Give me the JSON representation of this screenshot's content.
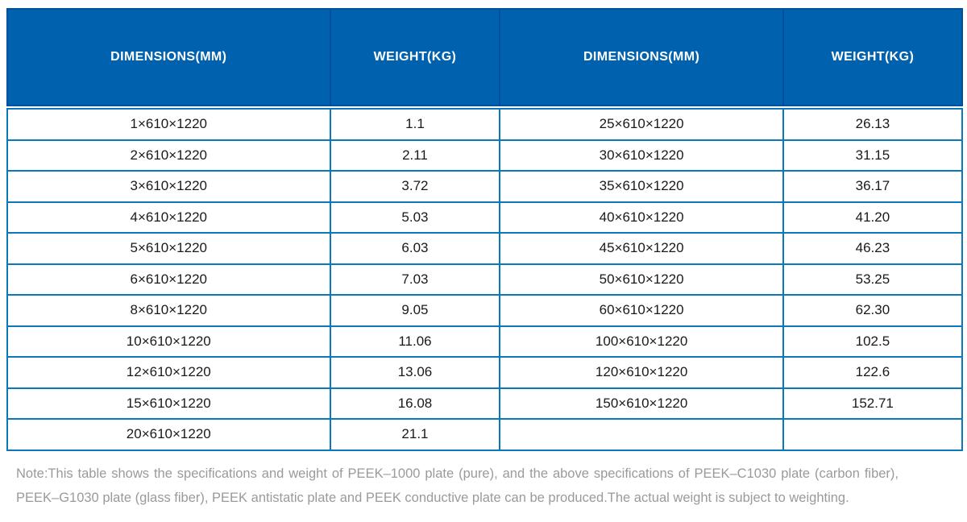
{
  "colors": {
    "header_bg": "#0061ae",
    "header_border": "#004f9c",
    "body_border": "#0a78bb",
    "cell_text": "#1a1a1a",
    "note_text": "#9a9a9a"
  },
  "table": {
    "headers": [
      "DIMENSIONS(MM)",
      "WEIGHT(KG)",
      "DIMENSIONS(MM)",
      "WEIGHT(KG)"
    ],
    "rows": [
      [
        "1×610×1220",
        "1.1",
        "25×610×1220",
        "26.13"
      ],
      [
        "2×610×1220",
        "2.11",
        "30×610×1220",
        "31.15"
      ],
      [
        "3×610×1220",
        "3.72",
        "35×610×1220",
        "36.17"
      ],
      [
        "4×610×1220",
        "5.03",
        "40×610×1220",
        "41.20"
      ],
      [
        "5×610×1220",
        "6.03",
        "45×610×1220",
        "46.23"
      ],
      [
        "6×610×1220",
        "7.03",
        "50×610×1220",
        "53.25"
      ],
      [
        "8×610×1220",
        "9.05",
        "60×610×1220",
        "62.30"
      ],
      [
        "10×610×1220",
        "11.06",
        "100×610×1220",
        "102.5"
      ],
      [
        "12×610×1220",
        "13.06",
        "120×610×1220",
        "122.6"
      ],
      [
        "15×610×1220",
        "16.08",
        "150×610×1220",
        "152.71"
      ],
      [
        "20×610×1220",
        "21.1",
        "",
        ""
      ]
    ]
  },
  "note": {
    "text": "Note:This table shows the specifications and weight of PEEK–1000 plate (pure), and the above specifications of PEEK–C1030 plate (carbon fiber), PEEK–G1030 plate (glass fiber), PEEK antistatic plate and PEEK conductive plate can be produced.The actual weight is subject to weighting."
  }
}
